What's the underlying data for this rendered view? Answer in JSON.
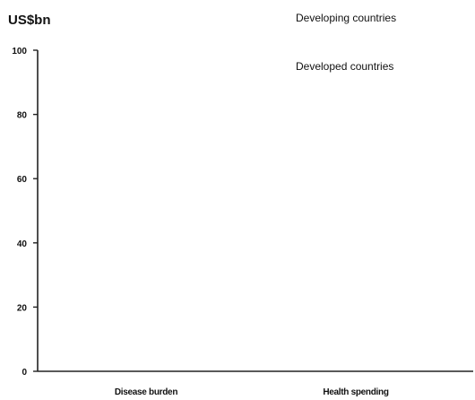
{
  "chart_data": {
    "type": "bar",
    "title": "",
    "ylabel": "US$bn",
    "xlabel": "",
    "categories": [
      "Disease burden",
      "Health spending"
    ],
    "series": [
      {
        "name": "Developing countries",
        "values": [
          null,
          null
        ]
      },
      {
        "name": "Developed countries",
        "values": [
          null,
          null
        ]
      }
    ],
    "ylim": [
      0,
      100
    ],
    "yticks": [
      0,
      20,
      40,
      60,
      80,
      100
    ],
    "grid": false,
    "legend_position": "top-right",
    "colors": {
      "axis": "#222222",
      "text": "#111111",
      "background": "#ffffff"
    }
  }
}
